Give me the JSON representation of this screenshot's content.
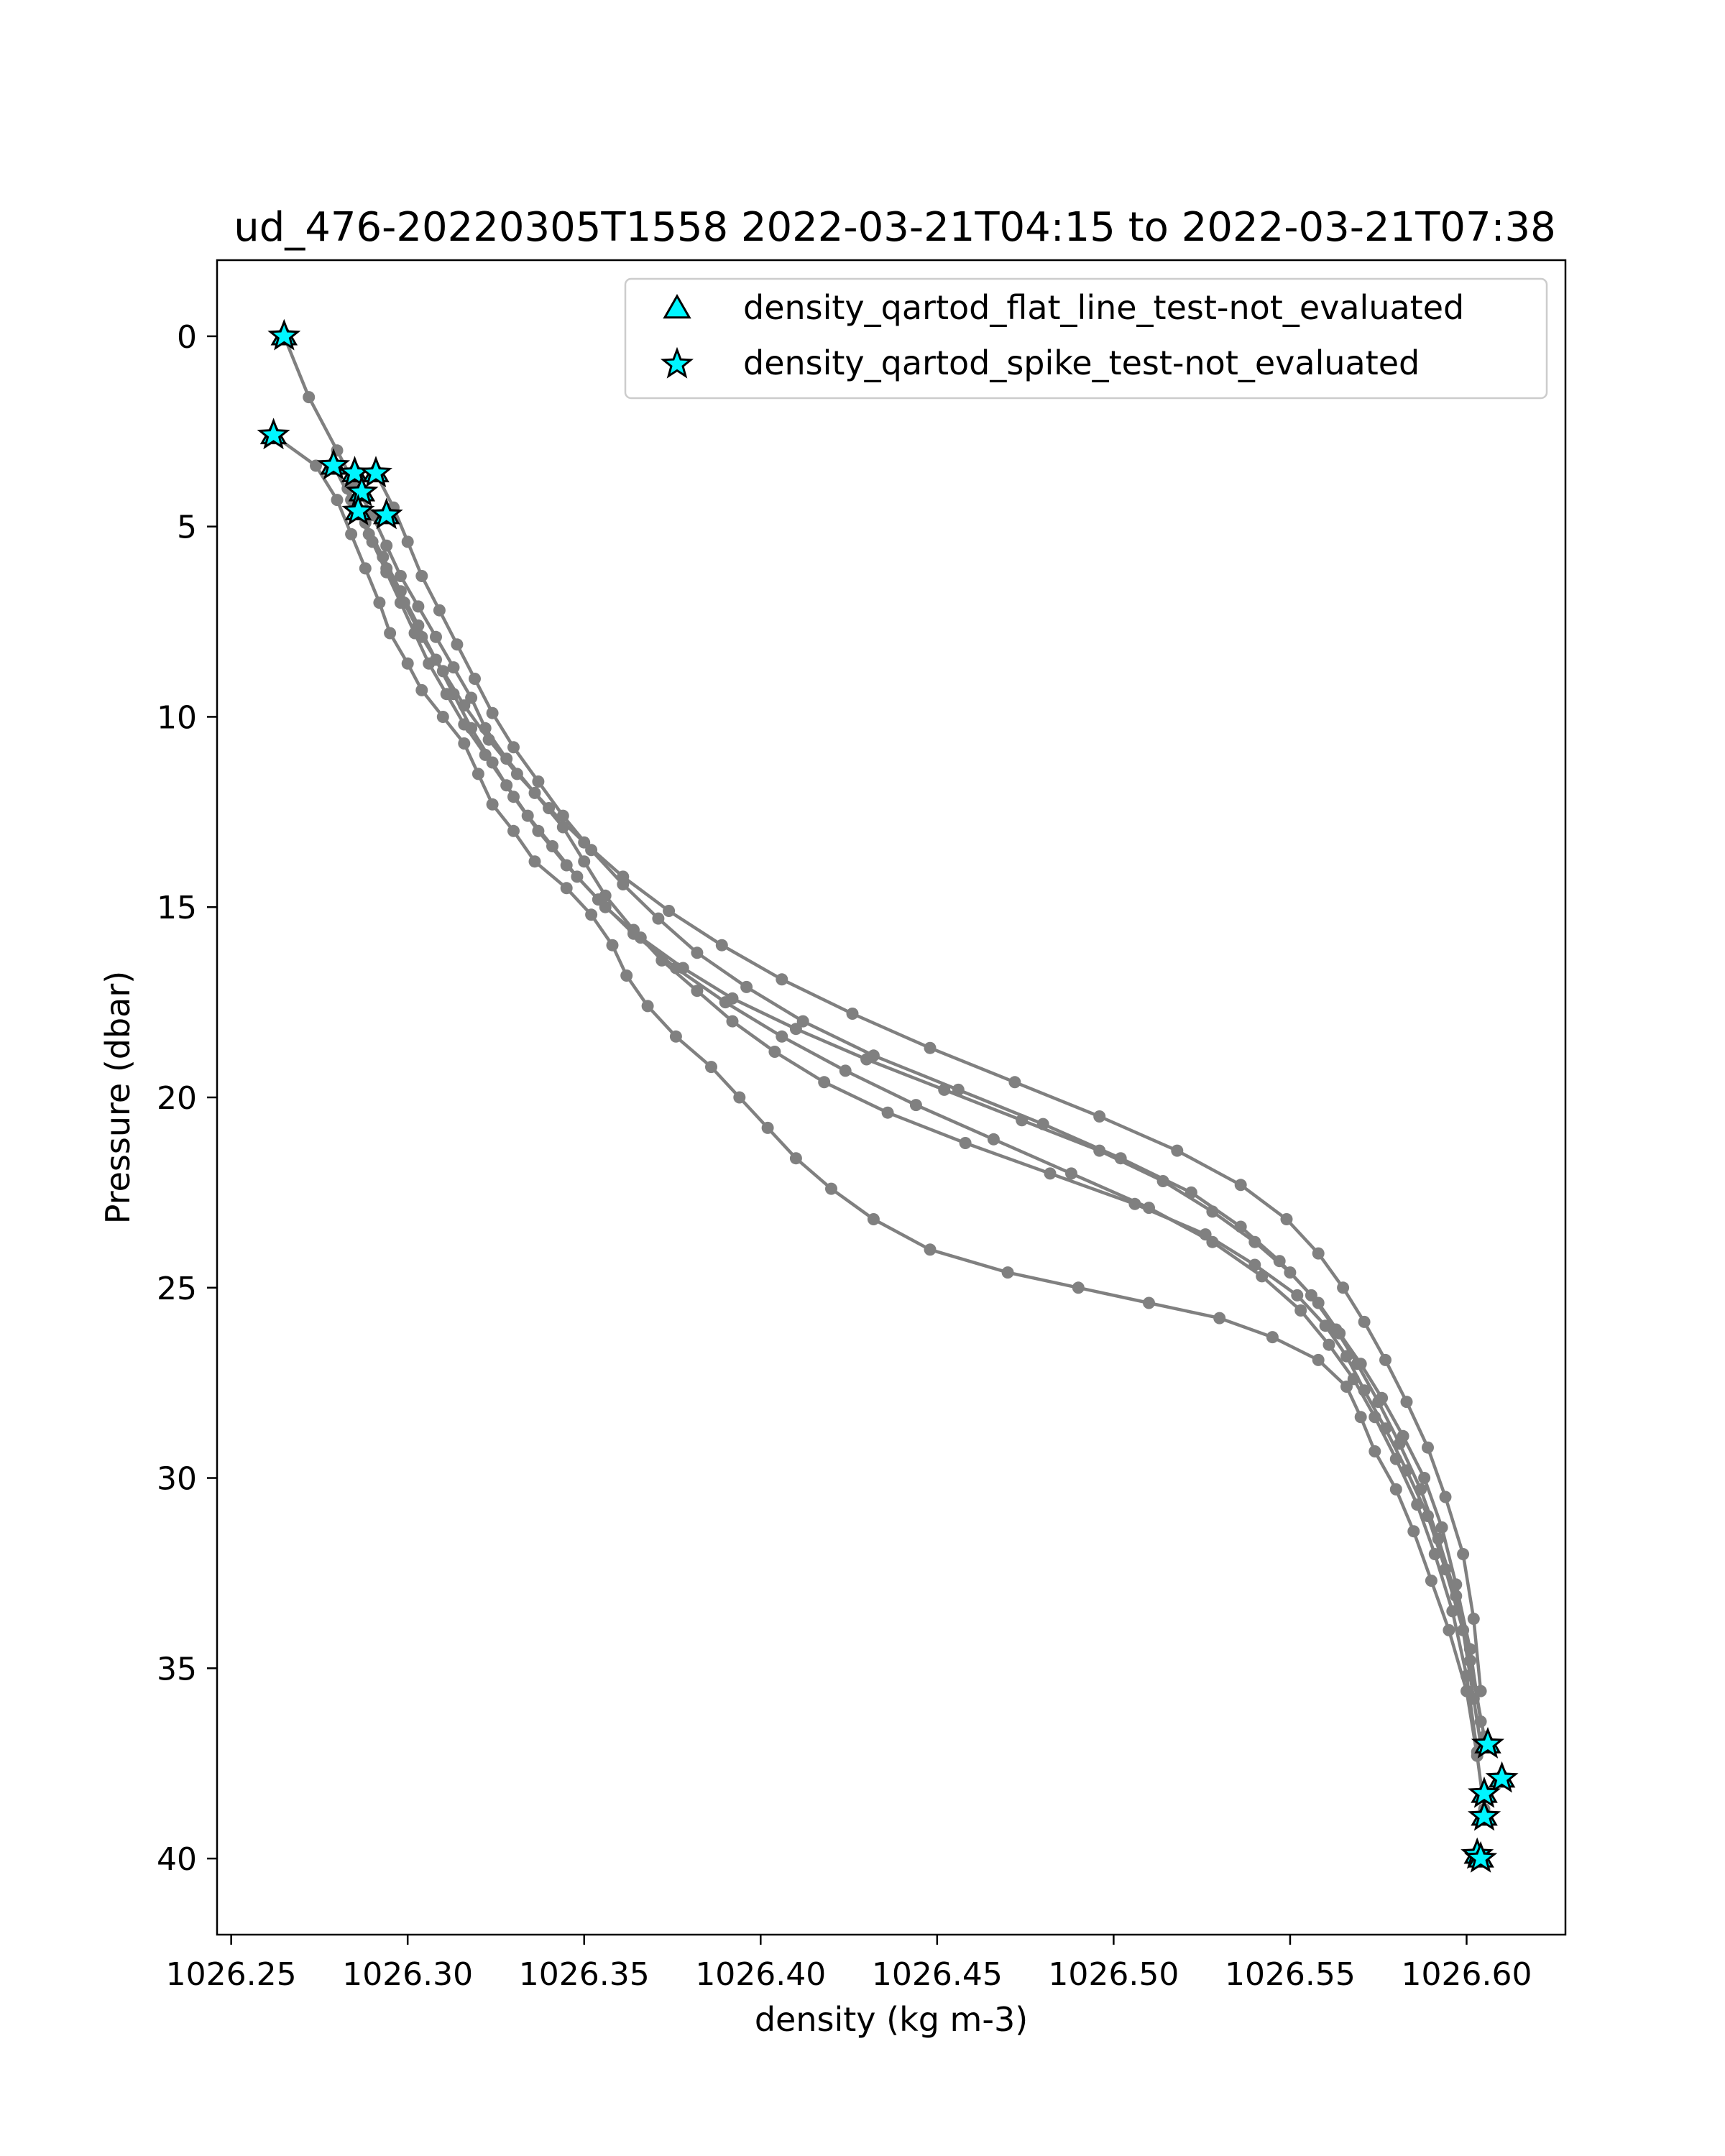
{
  "chart_data": {
    "type": "line",
    "title": "ud_476-20220305T1558 2022-03-21T04:15 to 2022-03-21T07:38",
    "xlabel": "density (kg m-3)",
    "ylabel": "Pressure (dbar)",
    "xlim": [
      1026.246,
      1026.628
    ],
    "ylim": [
      42.0,
      -2.0
    ],
    "y_inverted": true,
    "grid": false,
    "legend_position": "top-right",
    "x_ticks": [
      "1026.25",
      "1026.30",
      "1026.35",
      "1026.40",
      "1026.45",
      "1026.50",
      "1026.55",
      "1026.60"
    ],
    "x_tick_values": [
      1026.25,
      1026.3,
      1026.35,
      1026.4,
      1026.45,
      1026.5,
      1026.55,
      1026.6
    ],
    "y_ticks": [
      "0",
      "5",
      "10",
      "15",
      "20",
      "25",
      "30",
      "35",
      "40"
    ],
    "y_tick_values": [
      0,
      5,
      10,
      15,
      20,
      25,
      30,
      35,
      40
    ],
    "line_color": "#808080",
    "marker_color": "#00f5ff",
    "legend": [
      {
        "label": "density_qartod_flat_line_test-not_evaluated",
        "marker": "triangle",
        "color": "#00f5ff"
      },
      {
        "label": "density_qartod_spike_test-not_evaluated",
        "marker": "star",
        "color": "#00f5ff"
      }
    ],
    "series": [
      {
        "x": [
          1026.262,
          1026.274,
          1026.28,
          1026.284,
          1026.288,
          1026.292,
          1026.295,
          1026.3,
          1026.304,
          1026.31,
          1026.316,
          1026.32,
          1026.324,
          1026.33,
          1026.336,
          1026.345,
          1026.352,
          1026.358,
          1026.362,
          1026.368,
          1026.376,
          1026.386,
          1026.394,
          1026.402,
          1026.41,
          1026.42,
          1026.432,
          1026.448,
          1026.47,
          1026.49,
          1026.51,
          1026.53,
          1026.545,
          1026.558,
          1026.566,
          1026.57,
          1026.574,
          1026.58,
          1026.585,
          1026.59,
          1026.595,
          1026.6,
          1026.603,
          1026.605
        ],
        "y": [
          2.6,
          3.4,
          4.3,
          5.2,
          6.1,
          7.0,
          7.8,
          8.6,
          9.3,
          10.0,
          10.7,
          11.5,
          12.3,
          13.0,
          13.8,
          14.5,
          15.2,
          16.0,
          16.8,
          17.6,
          18.4,
          19.2,
          20.0,
          20.8,
          21.6,
          22.4,
          23.2,
          24.0,
          24.6,
          25.0,
          25.4,
          25.8,
          26.3,
          26.9,
          27.6,
          28.4,
          29.3,
          30.3,
          31.4,
          32.7,
          34.0,
          35.6,
          37.3,
          38.7
        ]
      },
      {
        "x": [
          1026.265,
          1026.272,
          1026.28,
          1026.285,
          1026.29,
          1026.294,
          1026.298,
          1026.303,
          1026.308,
          1026.313,
          1026.318,
          1026.322,
          1026.328,
          1026.336,
          1026.344,
          1026.35,
          1026.356,
          1026.364,
          1026.372,
          1026.382,
          1026.392,
          1026.404,
          1026.418,
          1026.436,
          1026.458,
          1026.482,
          1026.506,
          1026.526,
          1026.54,
          1026.552,
          1026.56,
          1026.566,
          1026.571,
          1026.577,
          1026.583,
          1026.589,
          1026.594,
          1026.599,
          1026.602,
          1026.604
        ],
        "y": [
          0.0,
          1.6,
          3.0,
          3.9,
          4.7,
          5.5,
          6.3,
          7.1,
          7.9,
          8.7,
          9.5,
          10.3,
          11.1,
          12.0,
          12.9,
          13.8,
          14.7,
          15.6,
          16.4,
          17.2,
          18.0,
          18.8,
          19.6,
          20.4,
          21.2,
          22.0,
          22.8,
          23.6,
          24.4,
          25.2,
          26.0,
          26.8,
          27.7,
          28.7,
          29.8,
          31.0,
          32.4,
          34.0,
          35.8,
          37.0
        ]
      },
      {
        "x": [
          1026.286,
          1026.29,
          1026.294,
          1026.298,
          1026.302,
          1026.306,
          1026.311,
          1026.316,
          1026.322,
          1026.328,
          1026.334,
          1026.341,
          1026.348,
          1026.356,
          1026.366,
          1026.378,
          1026.392,
          1026.41,
          1026.43,
          1026.452,
          1026.474,
          1026.496,
          1026.514,
          1026.528,
          1026.54,
          1026.55,
          1026.558,
          1026.564,
          1026.57,
          1026.576,
          1026.582,
          1026.588,
          1026.593,
          1026.597,
          1026.601,
          1026.604
        ],
        "y": [
          4.6,
          5.4,
          6.2,
          7.0,
          7.8,
          8.6,
          9.4,
          10.2,
          11.0,
          11.8,
          12.6,
          13.4,
          14.2,
          15.0,
          15.8,
          16.6,
          17.4,
          18.2,
          19.0,
          19.8,
          20.6,
          21.4,
          22.2,
          23.0,
          23.8,
          24.6,
          25.4,
          26.2,
          27.0,
          27.9,
          28.9,
          30.0,
          31.3,
          32.8,
          34.5,
          36.4
        ]
      },
      {
        "x": [
          1026.291,
          1026.296,
          1026.3,
          1026.304,
          1026.309,
          1026.314,
          1026.319,
          1026.324,
          1026.33,
          1026.337,
          1026.344,
          1026.352,
          1026.361,
          1026.371,
          1026.382,
          1026.396,
          1026.412,
          1026.432,
          1026.456,
          1026.48,
          1026.502,
          1026.522,
          1026.536,
          1026.547,
          1026.556,
          1026.563,
          1026.569,
          1026.575,
          1026.581,
          1026.587,
          1026.592,
          1026.597,
          1026.601,
          1026.605
        ],
        "y": [
          3.6,
          4.5,
          5.4,
          6.3,
          7.2,
          8.1,
          9.0,
          9.9,
          10.8,
          11.7,
          12.6,
          13.5,
          14.4,
          15.3,
          16.2,
          17.1,
          18.0,
          18.9,
          19.8,
          20.7,
          21.6,
          22.5,
          23.4,
          24.3,
          25.2,
          26.1,
          27.0,
          28.0,
          29.1,
          30.3,
          31.6,
          33.1,
          34.8,
          36.8
        ]
      },
      {
        "x": [
          1026.283,
          1026.288,
          1026.293,
          1026.298,
          1026.303,
          1026.308,
          1026.313,
          1026.318,
          1026.324,
          1026.33,
          1026.337,
          1026.345,
          1026.354,
          1026.364,
          1026.376,
          1026.39,
          1026.406,
          1026.424,
          1026.444,
          1026.466,
          1026.488,
          1026.51,
          1026.528,
          1026.542,
          1026.553,
          1026.561,
          1026.568,
          1026.574,
          1026.58,
          1026.586,
          1026.591,
          1026.596,
          1026.6,
          1026.603
        ],
        "y": [
          4.0,
          4.9,
          5.8,
          6.7,
          7.6,
          8.5,
          9.4,
          10.3,
          11.2,
          12.1,
          13.0,
          13.9,
          14.8,
          15.7,
          16.6,
          17.5,
          18.4,
          19.3,
          20.2,
          21.1,
          22.0,
          22.9,
          23.8,
          24.7,
          25.6,
          26.5,
          27.4,
          28.4,
          29.5,
          30.7,
          32.0,
          33.5,
          35.2,
          37.2
        ]
      },
      {
        "x": [
          1026.279,
          1026.284,
          1026.289,
          1026.294,
          1026.299,
          1026.304,
          1026.31,
          1026.316,
          1026.323,
          1026.331,
          1026.34,
          1026.35,
          1026.361,
          1026.374,
          1026.389,
          1026.406,
          1026.426,
          1026.448,
          1026.472,
          1026.496,
          1026.518,
          1026.536,
          1026.549,
          1026.558,
          1026.565,
          1026.571,
          1026.577,
          1026.583,
          1026.589,
          1026.594,
          1026.599,
          1026.602,
          1026.604
        ],
        "y": [
          3.4,
          4.3,
          5.2,
          6.1,
          7.0,
          7.9,
          8.8,
          9.7,
          10.6,
          11.5,
          12.4,
          13.3,
          14.2,
          15.1,
          16.0,
          16.9,
          17.8,
          18.7,
          19.6,
          20.5,
          21.4,
          22.3,
          23.2,
          24.1,
          25.0,
          25.9,
          26.9,
          28.0,
          29.2,
          30.5,
          32.0,
          33.7,
          35.6
        ]
      }
    ],
    "flag_points": [
      {
        "x": 1026.265,
        "y": 0.0
      },
      {
        "x": 1026.262,
        "y": 2.6
      },
      {
        "x": 1026.279,
        "y": 3.4
      },
      {
        "x": 1026.285,
        "y": 3.6
      },
      {
        "x": 1026.291,
        "y": 3.6
      },
      {
        "x": 1026.287,
        "y": 4.1
      },
      {
        "x": 1026.286,
        "y": 4.6
      },
      {
        "x": 1026.294,
        "y": 4.7
      },
      {
        "x": 1026.606,
        "y": 37.0
      },
      {
        "x": 1026.61,
        "y": 37.9
      },
      {
        "x": 1026.605,
        "y": 38.3
      },
      {
        "x": 1026.605,
        "y": 38.9
      },
      {
        "x": 1026.603,
        "y": 39.9
      },
      {
        "x": 1026.604,
        "y": 40.0
      }
    ]
  }
}
